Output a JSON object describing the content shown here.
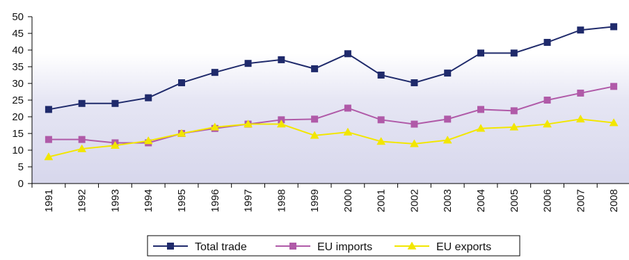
{
  "chart_data": {
    "type": "line",
    "title": "",
    "xlabel": "",
    "ylabel": "",
    "categories": [
      "1991",
      "1992",
      "1993",
      "1994",
      "1995",
      "1996",
      "1997",
      "1998",
      "1999",
      "2000",
      "2001",
      "2002",
      "2003",
      "2004",
      "2005",
      "2006",
      "2007",
      "2008"
    ],
    "ylim": [
      0,
      50
    ],
    "yticks": [
      "0",
      "5",
      "10",
      "15",
      "20",
      "25",
      "30",
      "35",
      "40",
      "45",
      "50"
    ],
    "grid": false,
    "legend_position": "bottom",
    "series": [
      {
        "name": "Total trade",
        "color": "#1f2a6b",
        "marker": "square",
        "values": [
          22.2,
          24.0,
          24.0,
          25.7,
          30.2,
          33.3,
          36.0,
          37.1,
          34.4,
          38.9,
          32.5,
          30.2,
          33.1,
          39.1,
          39.1,
          42.3,
          46.0,
          47.0
        ]
      },
      {
        "name": "EU imports",
        "color": "#b05aa8",
        "marker": "square",
        "values": [
          13.2,
          13.2,
          12.2,
          12.2,
          15.0,
          16.5,
          17.8,
          19.1,
          19.3,
          22.6,
          19.1,
          17.8,
          19.3,
          22.2,
          21.8,
          25.0,
          27.1,
          29.1
        ]
      },
      {
        "name": "EU exports",
        "color": "#f2e600",
        "marker": "triangle",
        "values": [
          8.0,
          10.4,
          11.4,
          12.8,
          15.0,
          16.9,
          17.8,
          17.8,
          14.4,
          15.4,
          12.6,
          11.9,
          13.0,
          16.5,
          16.9,
          17.8,
          19.3,
          18.2
        ]
      }
    ]
  }
}
